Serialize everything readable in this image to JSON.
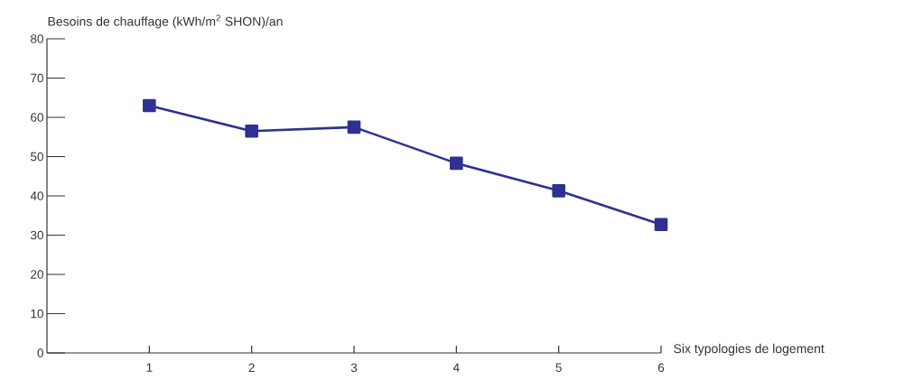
{
  "chart_data": {
    "type": "line",
    "ylabel": "Besoins de chauffage (kWh/m$^{2}$ SHON)/an",
    "xlabel": "Six typologies de logement",
    "x": [
      1,
      2,
      3,
      4,
      5,
      6
    ],
    "series": [
      {
        "color": "#2e3192",
        "values": [
          63,
          56.5,
          57.5,
          48.3,
          41.3,
          32.7
        ]
      }
    ],
    "xlim": [
      0,
      6
    ],
    "xticks": [
      1,
      2,
      3,
      4,
      5,
      6
    ],
    "ylim": [
      0,
      80
    ],
    "yticks": [
      0,
      10,
      20,
      30,
      40,
      50,
      60,
      70,
      80
    ],
    "marker": "square",
    "line_style": "solid"
  }
}
